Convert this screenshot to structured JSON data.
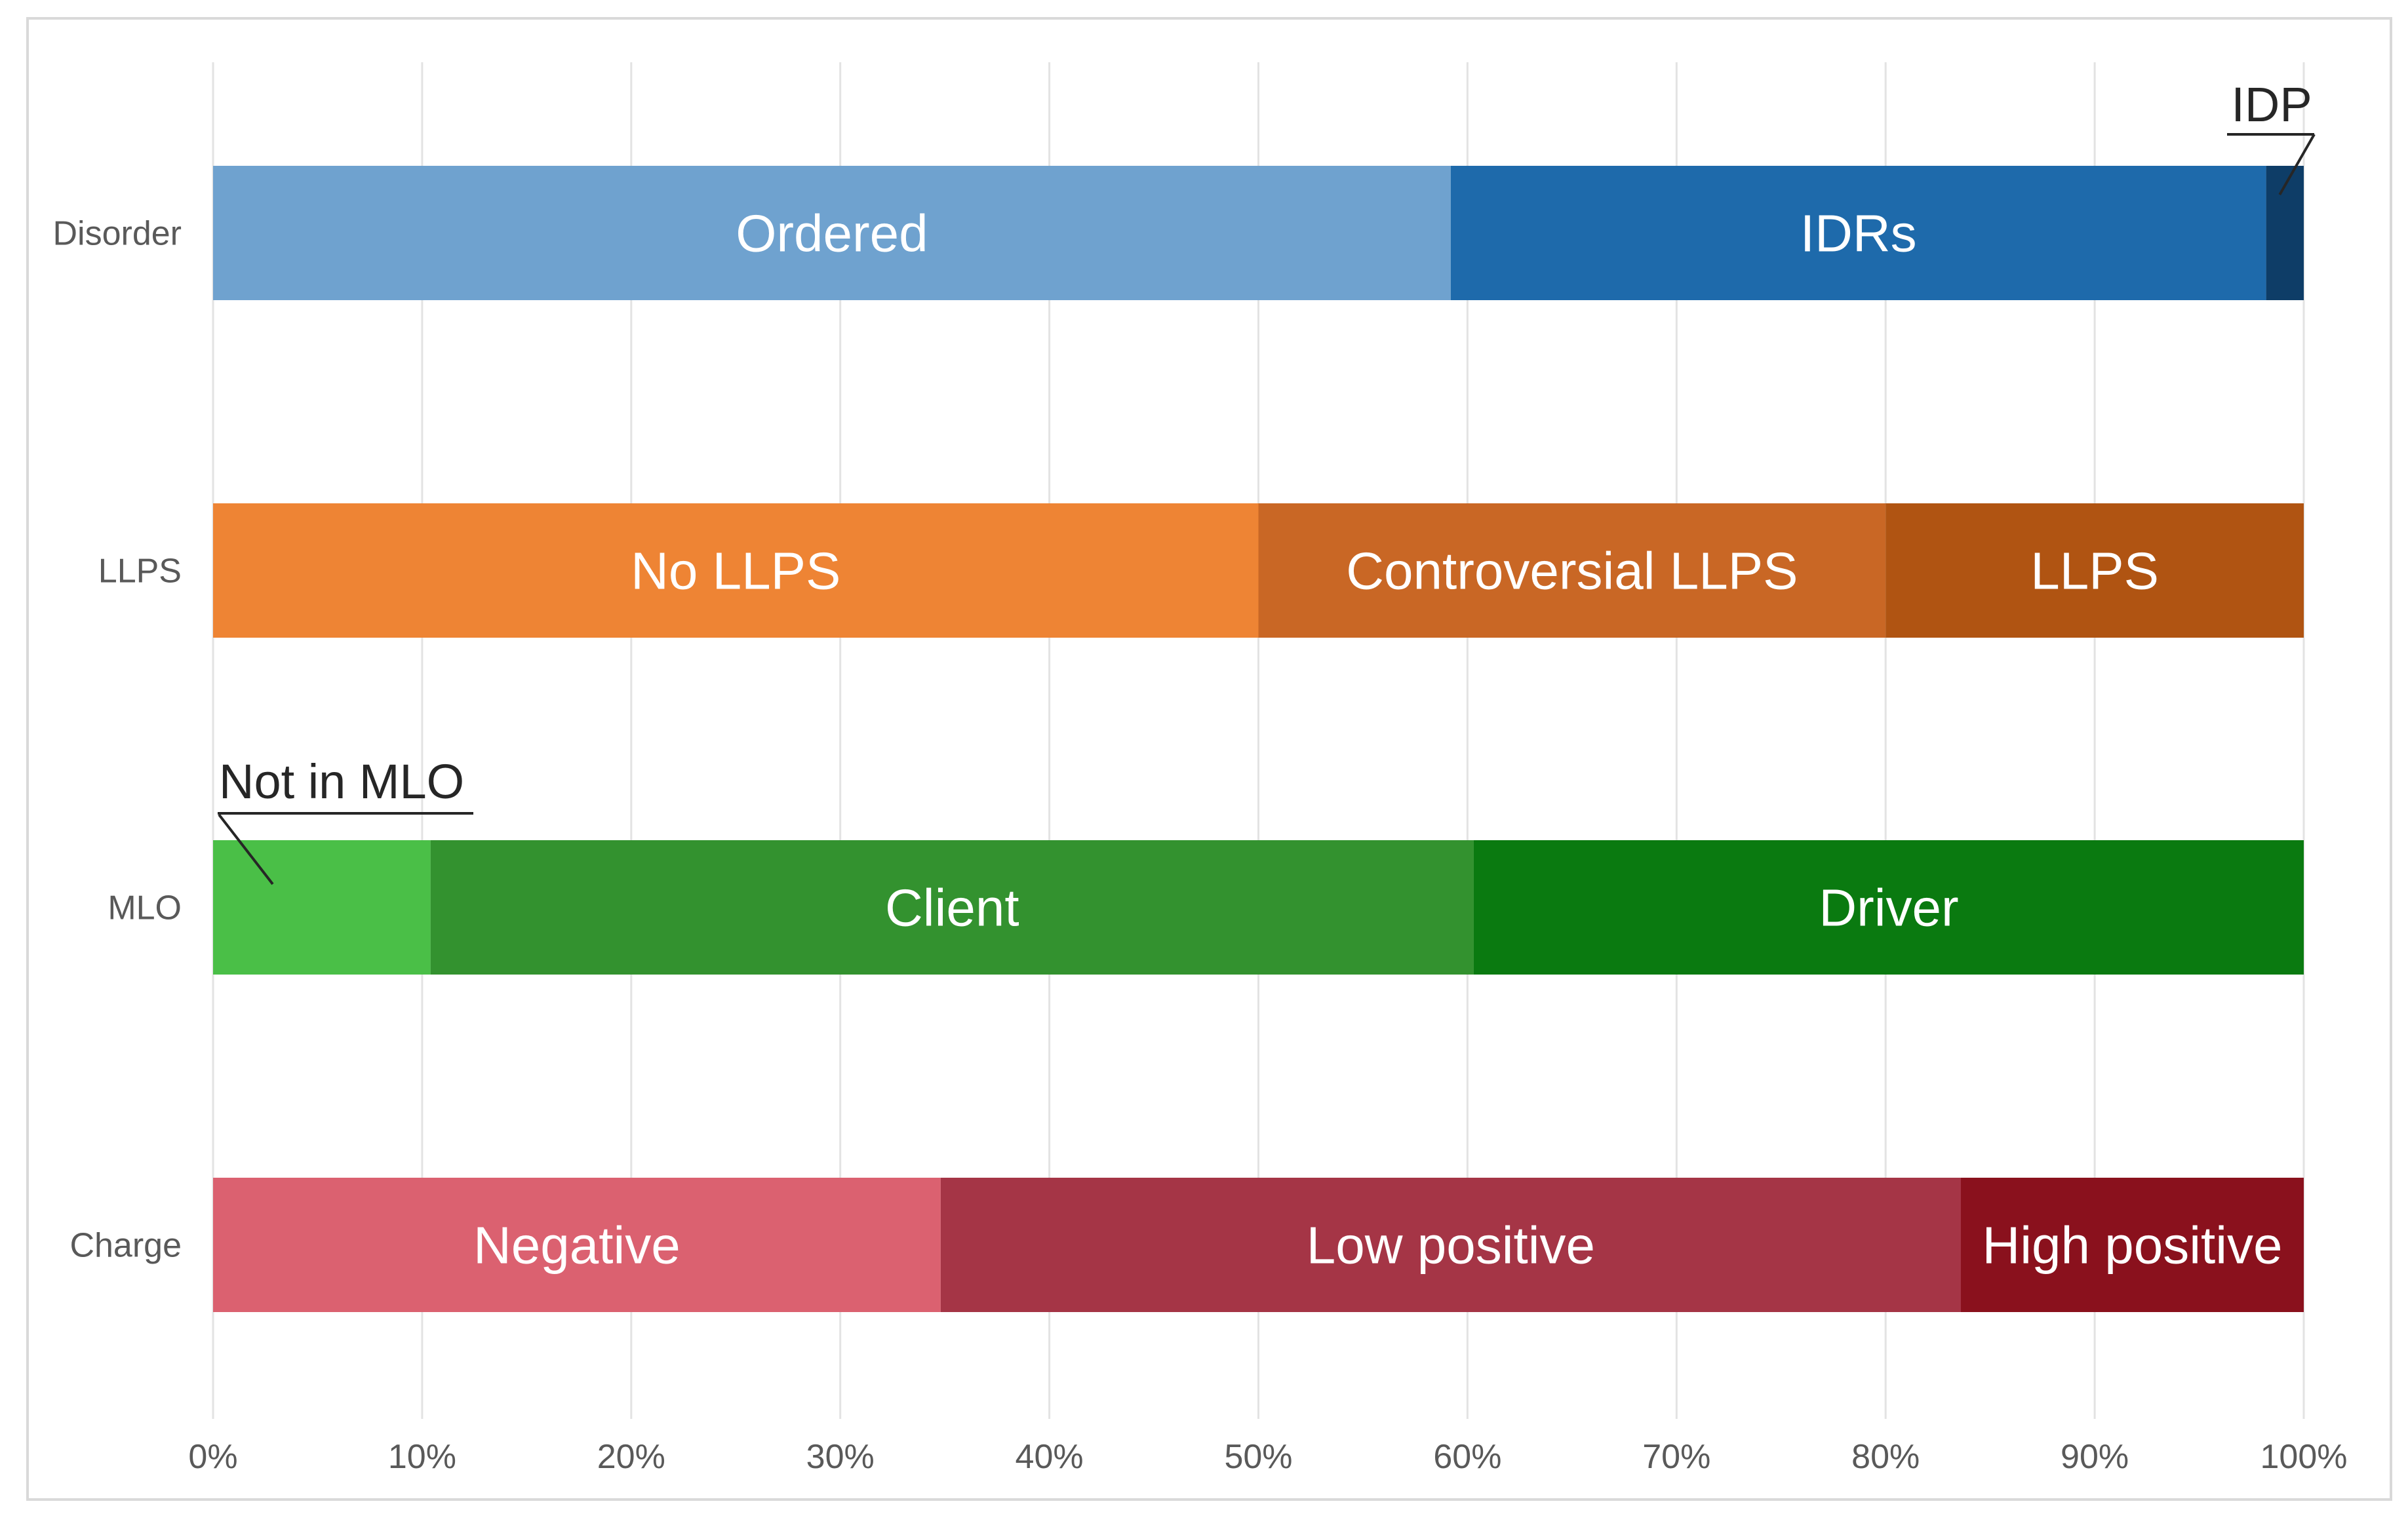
{
  "chart_data": {
    "type": "bar",
    "orientation": "horizontal",
    "stacked": true,
    "title": "",
    "xlabel": "",
    "ylabel": "",
    "xlim": [
      0,
      100
    ],
    "x_ticks": [
      "0%",
      "10%",
      "20%",
      "30%",
      "40%",
      "50%",
      "60%",
      "70%",
      "80%",
      "90%",
      "100%"
    ],
    "grid": "vertical",
    "rows": [
      {
        "category": "Disorder",
        "segments": [
          {
            "name": "Ordered",
            "value": 59.2,
            "color": "#6fa2cf",
            "label_shown": "inside"
          },
          {
            "name": "IDRs",
            "value": 39.0,
            "color": "#1e6aab",
            "label_shown": "inside"
          },
          {
            "name": "IDP",
            "value": 1.8,
            "color": "#0e3d67",
            "label_shown": "callout"
          }
        ]
      },
      {
        "category": "LLPS",
        "segments": [
          {
            "name": "No LLPS",
            "value": 50.0,
            "color": "#ee8434",
            "label_shown": "inside"
          },
          {
            "name": "Controversial LLPS",
            "value": 30.0,
            "color": "#c96725",
            "label_shown": "inside"
          },
          {
            "name": "LLPS",
            "value": 20.0,
            "color": "#b05412",
            "label_shown": "inside"
          }
        ]
      },
      {
        "category": "MLO",
        "segments": [
          {
            "name": "Not in MLO",
            "value": 10.4,
            "color": "#4abf47",
            "label_shown": "callout"
          },
          {
            "name": "Client",
            "value": 49.9,
            "color": "#33922f",
            "label_shown": "inside"
          },
          {
            "name": "Driver",
            "value": 39.7,
            "color": "#0a7a10",
            "label_shown": "inside"
          }
        ]
      },
      {
        "category": "Charge",
        "segments": [
          {
            "name": "Negative",
            "value": 34.8,
            "color": "#db6170",
            "label_shown": "inside"
          },
          {
            "name": "Low positive",
            "value": 48.8,
            "color": "#a53546",
            "label_shown": "inside"
          },
          {
            "name": "High positive",
            "value": 16.4,
            "color": "#8a111d",
            "label_shown": "inside"
          }
        ]
      }
    ]
  },
  "colors": {
    "grid": "#e3e3e3",
    "frame": "#d9d9d9",
    "axis_text": "#595959",
    "callout_text": "#262626",
    "segment_text": "#ffffff"
  }
}
